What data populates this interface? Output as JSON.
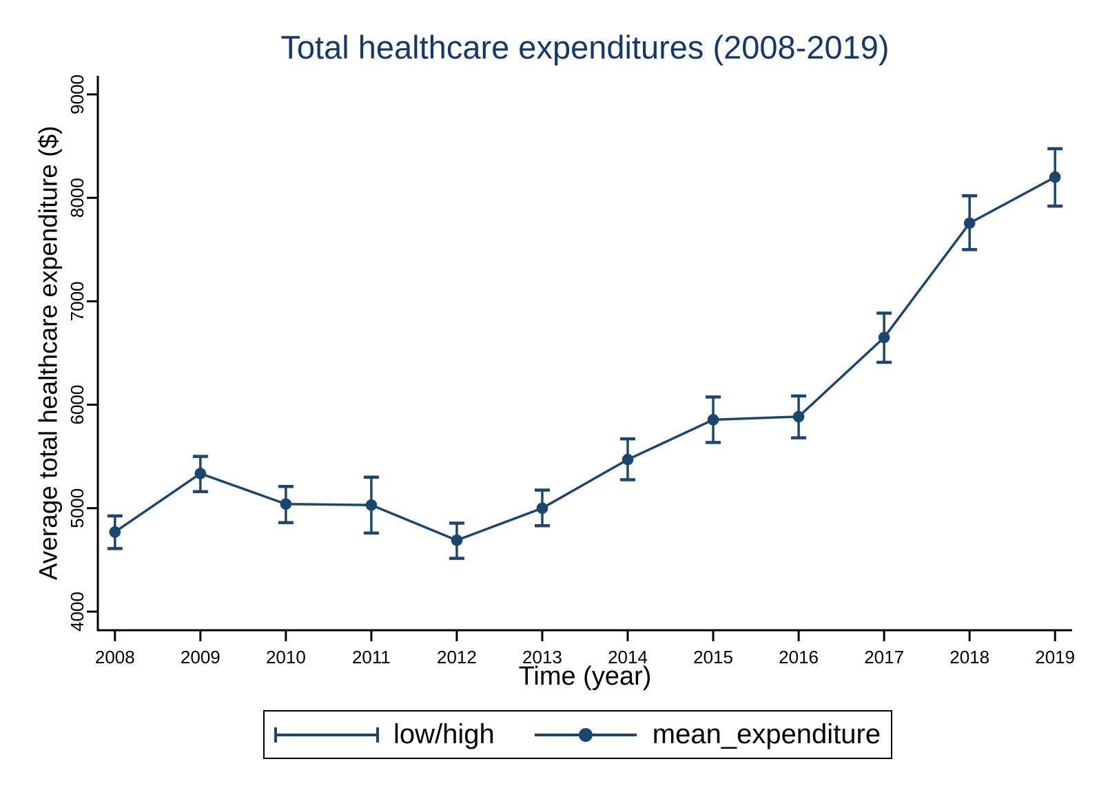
{
  "chart_data": {
    "type": "line",
    "title": "Total healthcare expenditures (2008-2019)",
    "xlabel": "Time (year)",
    "ylabel": "Average total healthcare expenditure ($)",
    "categories": [
      2008,
      2009,
      2010,
      2011,
      2012,
      2013,
      2014,
      2015,
      2016,
      2017,
      2018,
      2019
    ],
    "series": [
      {
        "name": "mean_expenditure",
        "values": [
          4770,
          5335,
          5040,
          5030,
          4690,
          5000,
          5470,
          5855,
          5885,
          6650,
          7755,
          8200
        ]
      },
      {
        "name": "low",
        "values": [
          4610,
          5160,
          4860,
          4760,
          4515,
          4830,
          5275,
          5635,
          5680,
          6410,
          7500,
          7920
        ]
      },
      {
        "name": "high",
        "values": [
          4925,
          5500,
          5210,
          5300,
          4855,
          5175,
          5670,
          6075,
          6085,
          6885,
          8020,
          8475
        ]
      }
    ],
    "yticks": [
      4000,
      5000,
      6000,
      7000,
      8000,
      9000
    ],
    "ylim": [
      3820,
      9180
    ],
    "xlim": [
      2007.8,
      2019.2
    ],
    "grid": false,
    "legend_position": "bottom",
    "legend": [
      {
        "label": "low/high",
        "glyph": "error-bar"
      },
      {
        "label": "mean_expenditure",
        "glyph": "line-dot"
      }
    ],
    "colors": {
      "series": "#1a476f",
      "title": "#13386c",
      "axis": "#000000",
      "text": "#000000"
    }
  }
}
